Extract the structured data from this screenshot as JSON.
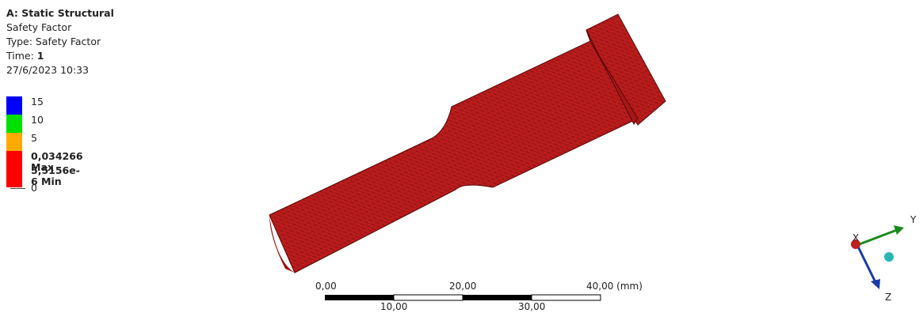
{
  "header": {
    "title": "A: Static Structural",
    "result": "Safety Factor",
    "type": "Type: Safety Factor",
    "time_label": "Time:",
    "time_value": "1",
    "date": "27/6/2023 10:33"
  },
  "legend": {
    "entries": [
      "15",
      "10",
      "5",
      "0,034266 Max",
      "5,5156e-6 Min"
    ],
    "baseline": "0"
  },
  "scale_bar": {
    "top_labels": [
      "0,00",
      "20,00",
      "40,00 (mm)"
    ],
    "bottom_labels": [
      "10,00",
      "30,00"
    ]
  },
  "triad": {
    "x": "X",
    "y": "Y",
    "z": "Z"
  }
}
